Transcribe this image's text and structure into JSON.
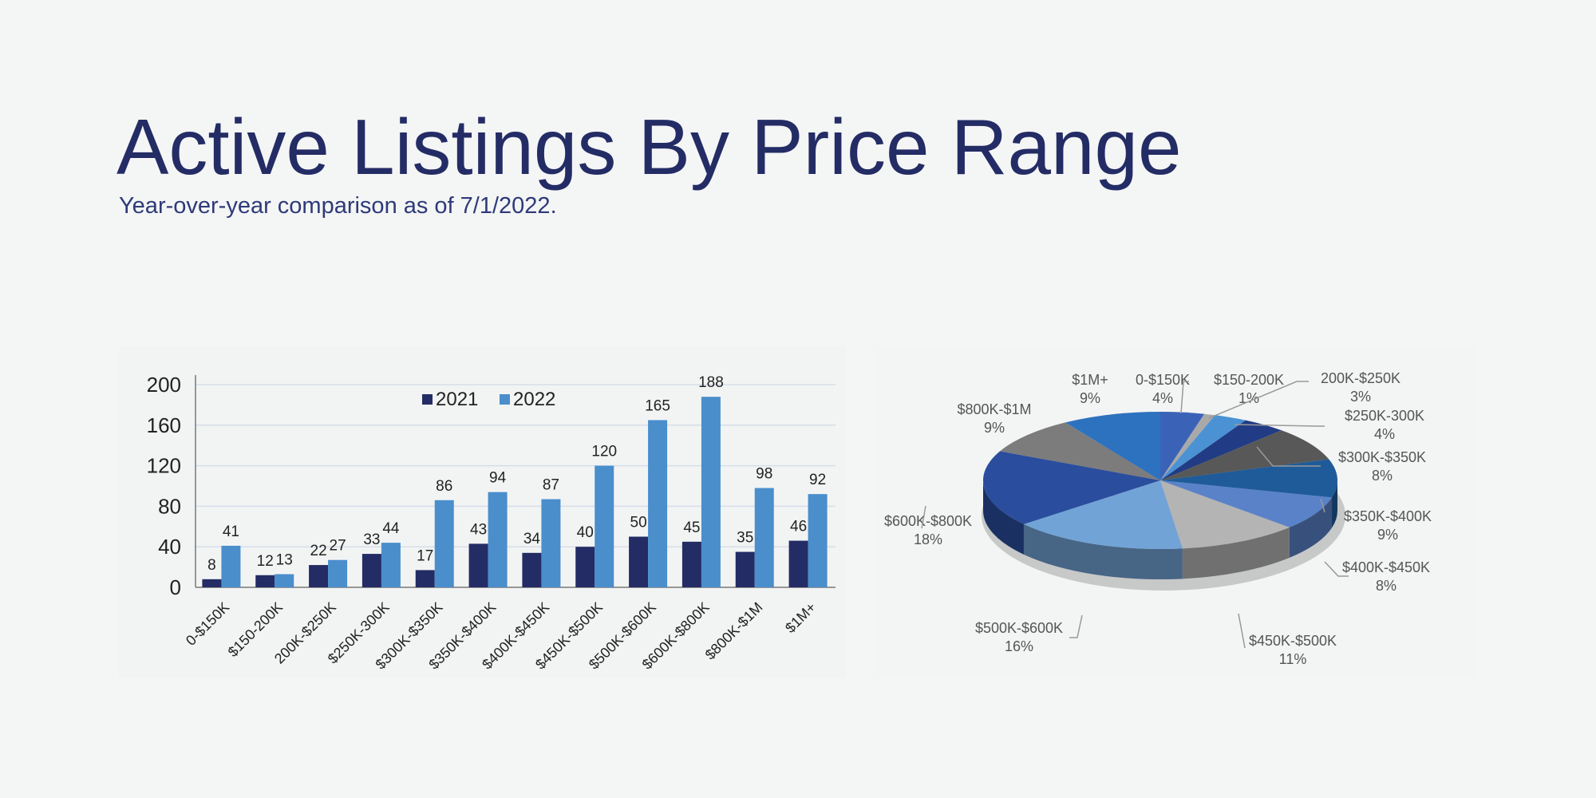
{
  "title": "Active Listings By Price Range",
  "subtitle": "Year-over-year comparison as of 7/1/2022.",
  "chart_data": [
    {
      "type": "bar",
      "categories": [
        "0-$150K",
        "$150-200K",
        "200K-$250K",
        "$250K-300K",
        "$300K-$350K",
        "$350K-$400K",
        "$400K-$450K",
        "$450K-$500K",
        "$500K-$600K",
        "$600K-$800K",
        "$800K-$1M",
        "$1M+"
      ],
      "series": [
        {
          "name": "2021",
          "color": "#232c64",
          "values": [
            8,
            12,
            22,
            33,
            17,
            43,
            34,
            40,
            50,
            45,
            35,
            46
          ]
        },
        {
          "name": "2022",
          "color": "#4a8ecc",
          "values": [
            41,
            13,
            27,
            44,
            86,
            94,
            87,
            120,
            165,
            188,
            98,
            92
          ]
        }
      ],
      "yticks": [
        0,
        40,
        80,
        120,
        160,
        200
      ],
      "ylim": [
        0,
        200
      ],
      "grid": true,
      "legend": "top-center",
      "data_labels": true
    },
    {
      "type": "pie",
      "style": "3d",
      "slices": [
        {
          "label": "0-$150K",
          "percent": "4%",
          "value": 4,
          "color": "#3a63b8"
        },
        {
          "label": "$150-200K",
          "percent": "1%",
          "value": 1,
          "color": "#a9a9a9"
        },
        {
          "label": "200K-$250K",
          "percent": "3%",
          "value": 3,
          "color": "#4b92d4"
        },
        {
          "label": "$250K-300K",
          "percent": "4%",
          "value": 4,
          "color": "#213c84"
        },
        {
          "label": "$300K-$350K",
          "percent": "8%",
          "value": 8,
          "color": "#585858"
        },
        {
          "label": "$350K-$400K",
          "percent": "9%",
          "value": 9,
          "color": "#1f5b98"
        },
        {
          "label": "$400K-$450K",
          "percent": "8%",
          "value": 8,
          "color": "#5a82c8"
        },
        {
          "label": "$450K-$500K",
          "percent": "11%",
          "value": 11,
          "color": "#b4b4b4"
        },
        {
          "label": "$500K-$600K",
          "percent": "16%",
          "value": 16,
          "color": "#72a3d6"
        },
        {
          "label": "$600K-$800K",
          "percent": "18%",
          "value": 18,
          "color": "#2a4d9e"
        },
        {
          "label": "$800K-$1M",
          "percent": "9%",
          "value": 9,
          "color": "#7c7c7c"
        },
        {
          "label": "$1M+",
          "percent": "9%",
          "value": 9,
          "color": "#2d72be"
        }
      ]
    }
  ]
}
